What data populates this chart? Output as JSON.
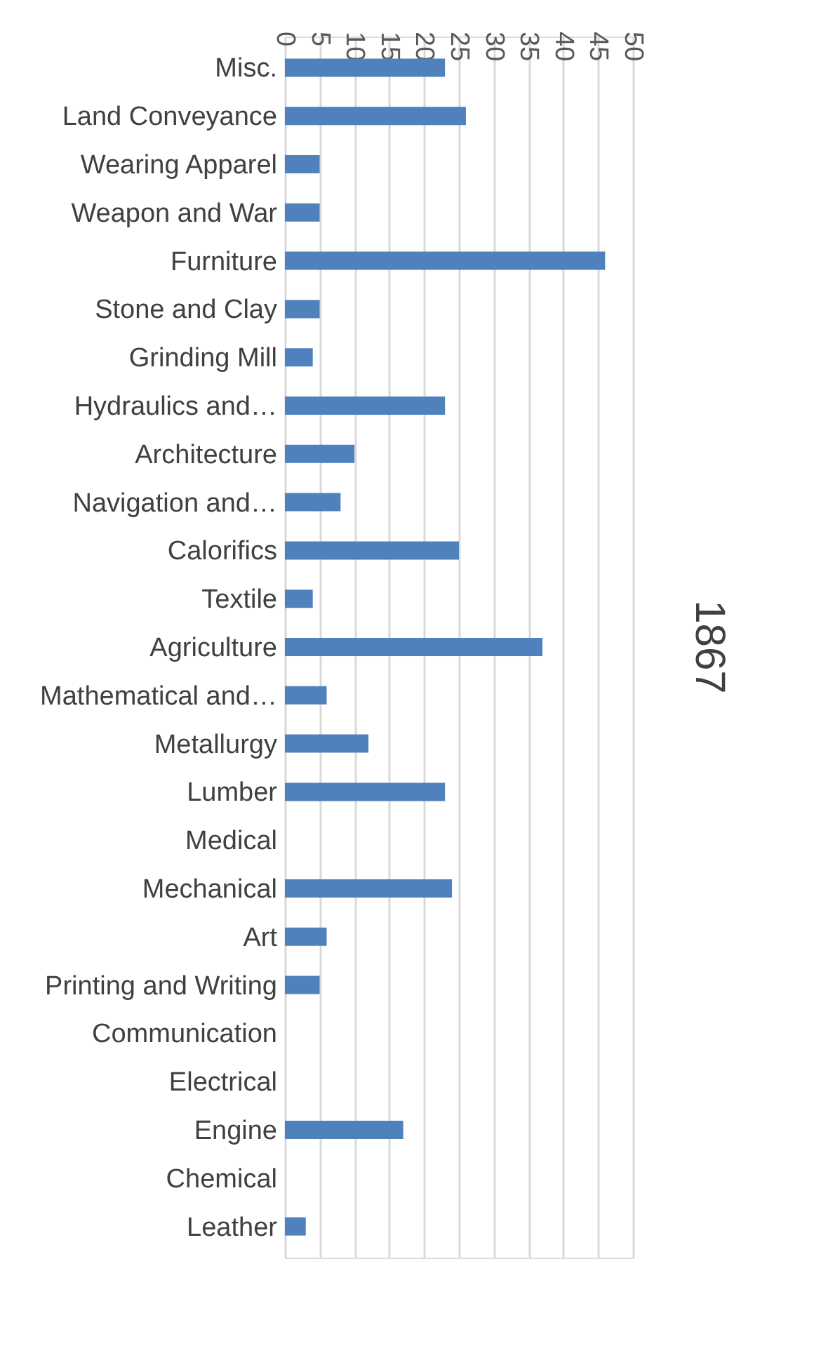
{
  "chart_data": {
    "type": "bar",
    "orientation": "horizontal",
    "title": "1867",
    "categories": [
      "Misc.",
      "Land  Conveyance",
      "Wearing   Apparel",
      "Weapon and War",
      "Furniture",
      "Stone and Clay",
      "Grinding Mill",
      "Hydraulics and…",
      "Architecture ",
      "Navigation and…",
      "Calorifics",
      "Textile",
      "Agriculture",
      "Mathematical and…",
      "Metallurgy",
      "Lumber",
      "Medical",
      "Mechanical",
      "Art",
      "Printing and Writing",
      "Communication",
      "Electrical",
      "Engine",
      "Chemical",
      "Leather"
    ],
    "values": [
      23,
      26,
      5,
      5,
      46,
      5,
      4,
      23,
      10,
      8,
      25,
      4,
      37,
      6,
      12,
      23,
      0,
      24,
      6,
      5,
      0,
      0,
      17,
      0,
      3
    ],
    "color": "#4f81bd",
    "xlim": [
      0,
      50
    ],
    "xticks": [
      0,
      5,
      10,
      15,
      20,
      25,
      30,
      35,
      40,
      45,
      50
    ],
    "grid": "x"
  }
}
